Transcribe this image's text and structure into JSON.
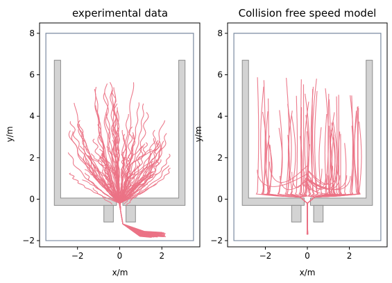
{
  "chart_data": [
    {
      "type": "line",
      "title": "experimental data",
      "xlabel": "x/m",
      "ylabel": "y/m",
      "xlim": [
        -3.8,
        3.8
      ],
      "ylim": [
        -2.3,
        8.5
      ],
      "xticks": [
        -2,
        0,
        2
      ],
      "yticks": [
        -2,
        0,
        2,
        4,
        6,
        8
      ],
      "xtick_labels": [
        "−2",
        "0",
        "2"
      ],
      "ytick_labels": [
        "−2",
        "0",
        "2",
        "4",
        "6",
        "8"
      ],
      "grid": false,
      "trajectory_color": "#eb7285",
      "trajectory_description": "Pedestrian trajectories fanning upward from a bottleneck exit at about (0, -0.3) into a room 0 to 6 m deep; exit tails bend right toward about (2.1, -1.7).",
      "geometry": {
        "outer_boundary": [
          [
            -3.5,
            -2.0
          ],
          [
            3.5,
            -2.0
          ],
          [
            3.5,
            8.0
          ],
          [
            -3.5,
            8.0
          ]
        ],
        "walls": [
          {
            "name": "left-wall",
            "polygon": [
              [
                -3.1,
                6.7
              ],
              [
                -2.8,
                6.7
              ],
              [
                -2.8,
                0.05
              ],
              [
                -0.15,
                0.05
              ],
              [
                -0.15,
                -0.3
              ],
              [
                -3.1,
                -0.3
              ]
            ]
          },
          {
            "name": "right-wall",
            "polygon": [
              [
                2.8,
                6.7
              ],
              [
                3.1,
                6.7
              ],
              [
                3.1,
                -0.3
              ],
              [
                0.15,
                -0.3
              ],
              [
                0.15,
                0.05
              ],
              [
                2.8,
                0.05
              ]
            ]
          },
          {
            "name": "left-bottleneck-post",
            "polygon": [
              [
                -0.75,
                -0.3
              ],
              [
                -0.3,
                -0.3
              ],
              [
                -0.3,
                -1.1
              ],
              [
                -0.75,
                -1.1
              ]
            ]
          },
          {
            "name": "right-bottleneck-post",
            "polygon": [
              [
                0.3,
                -0.3
              ],
              [
                0.75,
                -0.3
              ],
              [
                0.75,
                -1.1
              ],
              [
                0.3,
                -1.1
              ]
            ]
          }
        ],
        "wall_fill": "#d3d3d3",
        "wall_edge": "#8c8c8c",
        "boundary_color": "#7a8aa0"
      }
    },
    {
      "type": "line",
      "title": "Collision free speed model",
      "xlabel": "x/m",
      "ylabel": "y/m",
      "xlim": [
        -3.8,
        3.8
      ],
      "ylim": [
        -2.3,
        8.5
      ],
      "xticks": [
        -2,
        0,
        2
      ],
      "yticks": [
        -2,
        0,
        2,
        4,
        6,
        8
      ],
      "xtick_labels": [
        "−2",
        "0",
        "2"
      ],
      "ytick_labels": [
        "−2",
        "0",
        "2",
        "4",
        "6",
        "8"
      ],
      "grid": false,
      "trajectory_color": "#eb7285",
      "trajectory_description": "Simulated trajectories running nearly straight down from 2.5 to 6 m, curving toward a bottleneck exit at about (0, -0.3) with a U-shaped cluster near y = 0.3; single exit tail to about (0, -1.7).",
      "geometry": {
        "outer_boundary": [
          [
            -3.5,
            -2.0
          ],
          [
            3.5,
            -2.0
          ],
          [
            3.5,
            8.0
          ],
          [
            -3.5,
            8.0
          ]
        ],
        "walls": [
          {
            "name": "left-wall",
            "polygon": [
              [
                -3.1,
                6.7
              ],
              [
                -2.8,
                6.7
              ],
              [
                -2.8,
                0.05
              ],
              [
                -0.15,
                0.05
              ],
              [
                -0.15,
                -0.3
              ],
              [
                -3.1,
                -0.3
              ]
            ]
          },
          {
            "name": "right-wall",
            "polygon": [
              [
                2.8,
                6.7
              ],
              [
                3.1,
                6.7
              ],
              [
                3.1,
                -0.3
              ],
              [
                0.15,
                -0.3
              ],
              [
                0.15,
                0.05
              ],
              [
                2.8,
                0.05
              ]
            ]
          },
          {
            "name": "left-bottleneck-post",
            "polygon": [
              [
                -0.75,
                -0.3
              ],
              [
                -0.3,
                -0.3
              ],
              [
                -0.3,
                -1.1
              ],
              [
                -0.75,
                -1.1
              ]
            ]
          },
          {
            "name": "right-bottleneck-post",
            "polygon": [
              [
                0.3,
                -0.3
              ],
              [
                0.75,
                -0.3
              ],
              [
                0.75,
                -1.1
              ],
              [
                0.3,
                -1.1
              ]
            ]
          }
        ],
        "wall_fill": "#d3d3d3",
        "wall_edge": "#8c8c8c",
        "boundary_color": "#7a8aa0"
      }
    }
  ]
}
